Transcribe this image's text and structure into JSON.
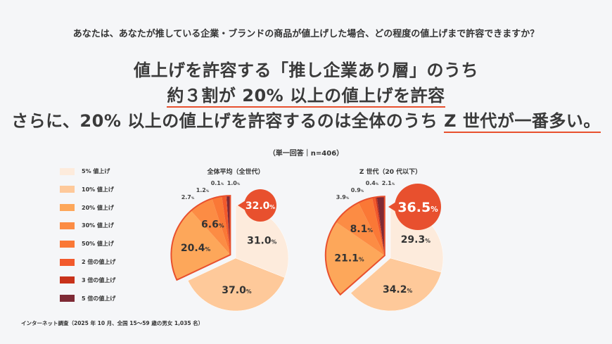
{
  "question": "あなたは、あなたが推している企業・ブランドの商品が値上げした場合、どの程度の値上げまで許容できますか？",
  "headline": {
    "line1": "値上げを許容する「推し企業あり層」のうち",
    "line2": "約３割が 20% 以上の値上げを許容",
    "line3_pre": "さらに、20% 以上の値上げを許容するのは全体のうち ",
    "line3_ul": "Z 世代が一番多い。"
  },
  "sample_note": "（単一回答｜n=406）",
  "footnote": "インターネット調査（2025 年 10 月、全国 15〜59 歳の男女 1,035 名）",
  "chart_data": [
    {
      "type": "pie",
      "title": "全体平均（全世代）",
      "categories": [
        "5% 値上げ",
        "10% 値上げ",
        "20% 値上げ",
        "30% 値上げ",
        "50% 値上げ",
        "2 倍の値上げ",
        "3 倍の値上げ",
        "5 倍の値上げ"
      ],
      "values": [
        31.0,
        37.0,
        20.4,
        6.6,
        2.7,
        1.2,
        0.1,
        1.0
      ],
      "highlight_from": "20% 値上げ",
      "highlight_total": "32.0",
      "unit": "%"
    },
    {
      "type": "pie",
      "title": "Z 世代（20 代以下）",
      "categories": [
        "5% 値上げ",
        "10% 値上げ",
        "20% 値上げ",
        "30% 値上げ",
        "50% 値上げ",
        "2 倍の値上げ",
        "3 倍の値上げ",
        "5 倍の値上げ"
      ],
      "values": [
        29.3,
        34.2,
        21.1,
        8.1,
        3.9,
        0.9,
        0.4,
        2.1
      ],
      "highlight_from": "20% 値上げ",
      "highlight_total": "36.5",
      "unit": "%"
    }
  ],
  "legend": [
    "5% 値上げ",
    "10% 値上げ",
    "20% 値上げ",
    "30% 値上げ",
    "50% 値上げ",
    "2 倍の値上げ",
    "3 倍の値上げ",
    "5 倍の値上げ"
  ],
  "colors": [
    "#fdebdc",
    "#fec99a",
    "#fda75a",
    "#fc8c44",
    "#fa7836",
    "#f2592b",
    "#c8321a",
    "#7e2a35"
  ],
  "accent": "#e8502e"
}
